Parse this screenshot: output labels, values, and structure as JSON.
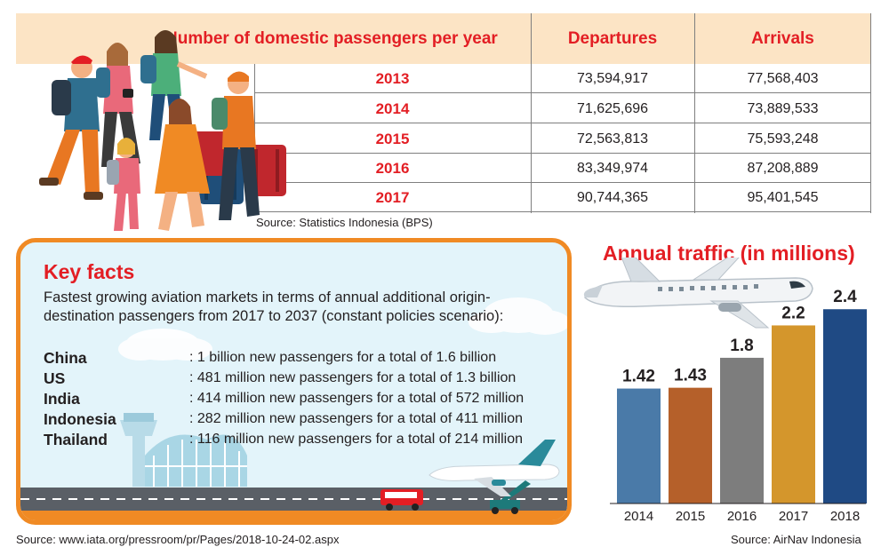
{
  "table": {
    "title": "Number of domestic passengers per year",
    "col_departures": "Departures",
    "col_arrivals": "Arrivals",
    "rows": [
      {
        "year": "2013",
        "departures": "73,594,917",
        "arrivals": "77,568,403"
      },
      {
        "year": "2014",
        "departures": "71,625,696",
        "arrivals": "73,889,533"
      },
      {
        "year": "2015",
        "departures": "72,563,813",
        "arrivals": "75,593,248"
      },
      {
        "year": "2016",
        "departures": "83,349,974",
        "arrivals": "87,208,889"
      },
      {
        "year": "2017",
        "departures": "90,744,365",
        "arrivals": "95,401,545"
      }
    ],
    "source": "Source: Statistics Indonesia (BPS)"
  },
  "key_facts": {
    "title": "Key facts",
    "intro": "Fastest growing aviation markets in terms of annual additional origin-destination passengers from 2017 to 2037 (constant policies scenario):",
    "items": [
      {
        "country": "China",
        "detail": ": 1 billion new passengers for a total of 1.6 billion"
      },
      {
        "country": "US",
        "detail": ": 481 million new passengers for a total of 1.3 billion"
      },
      {
        "country": "India",
        "detail": ": 414 million new passengers for a total of 572 million"
      },
      {
        "country": "Indonesia",
        "detail": ": 282 million new passengers for a total of 411 million"
      },
      {
        "country": "Thailand",
        "detail": ": 116 million new passengers for a total of 214 million"
      }
    ],
    "source": "Source: www.iata.org/pressroom/pr/Pages/2018-10-24-02.aspx"
  },
  "chart_data": {
    "type": "bar",
    "title": "Annual traffic (in millions)",
    "categories": [
      "2014",
      "2015",
      "2016",
      "2017",
      "2018"
    ],
    "values": [
      1.42,
      1.43,
      1.8,
      2.2,
      2.4
    ],
    "data_labels": [
      "1.42",
      "1.43",
      "1.8",
      "2.2",
      "2.4"
    ],
    "colors": [
      "#4a7aa8",
      "#b5602a",
      "#7d7d7d",
      "#d4962c",
      "#1f4a84"
    ],
    "xlabel": "",
    "ylabel": "",
    "ylim": [
      0,
      2.6
    ],
    "grid": false,
    "source": "Source: AirNav Indonesia"
  },
  "colors": {
    "accent_red": "#e31e24",
    "header_bg": "#fce4c5",
    "facts_border": "#f08a24",
    "facts_bg": "#e3f4fa"
  }
}
